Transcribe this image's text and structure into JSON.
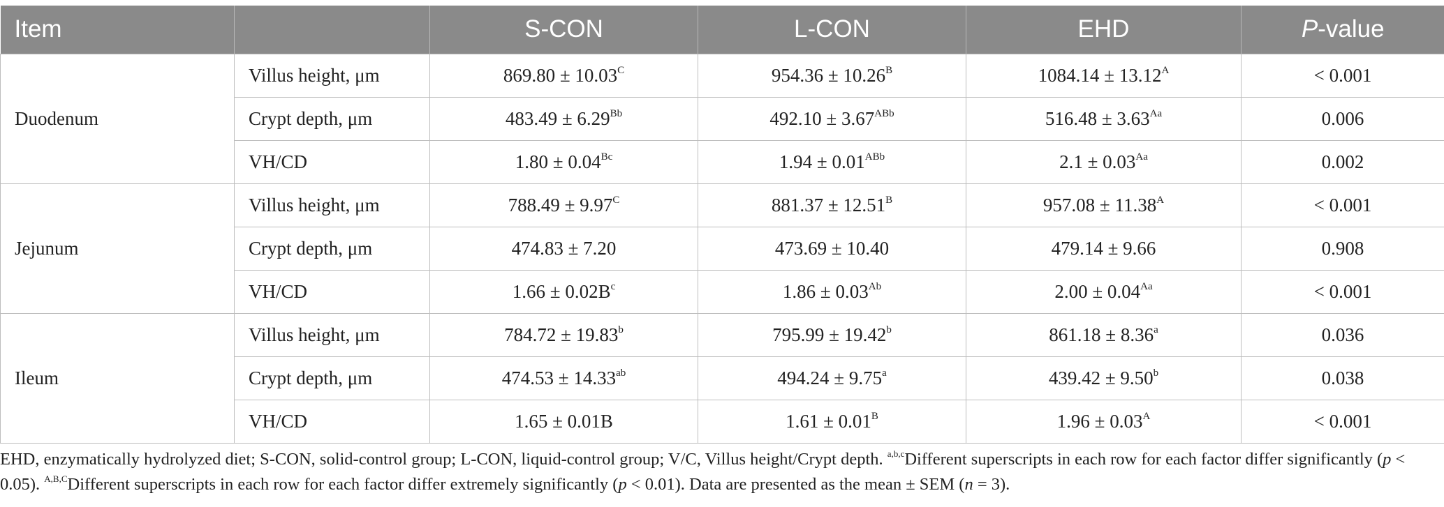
{
  "table": {
    "headers": {
      "item": "Item",
      "param": "",
      "s_con": "S-CON",
      "l_con": "L-CON",
      "ehd": "EHD",
      "p_value_italic": "P",
      "p_value_rest": "-value"
    },
    "groups": [
      {
        "name": "Duodenum",
        "rows": [
          {
            "param": "Villus height, μm",
            "s_con": {
              "value": "869.80 ± 10.03",
              "sup": "C"
            },
            "l_con": {
              "value": "954.36 ± 10.26",
              "sup": "B"
            },
            "ehd": {
              "value": "1084.14 ± 13.12",
              "sup": "A"
            },
            "p": "< 0.001"
          },
          {
            "param": "Crypt depth, μm",
            "s_con": {
              "value": "483.49 ± 6.29",
              "sup": "Bb"
            },
            "l_con": {
              "value": "492.10 ± 3.67",
              "sup": "ABb"
            },
            "ehd": {
              "value": "516.48 ± 3.63",
              "sup": "Aa"
            },
            "p": "0.006"
          },
          {
            "param": "VH/CD",
            "s_con": {
              "value": "1.80 ± 0.04",
              "sup": "Bc"
            },
            "l_con": {
              "value": "1.94 ± 0.01",
              "sup": "ABb"
            },
            "ehd": {
              "value": "2.1 ± 0.03",
              "sup": "Aa"
            },
            "p": "0.002"
          }
        ]
      },
      {
        "name": "Jejunum",
        "rows": [
          {
            "param": "Villus height, μm",
            "s_con": {
              "value": "788.49 ± 9.97",
              "sup": "C"
            },
            "l_con": {
              "value": "881.37 ± 12.51",
              "sup": "B"
            },
            "ehd": {
              "value": "957.08 ± 11.38",
              "sup": "A"
            },
            "p": "< 0.001"
          },
          {
            "param": "Crypt depth, μm",
            "s_con": {
              "value": "474.83 ± 7.20",
              "sup": ""
            },
            "l_con": {
              "value": "473.69 ± 10.40",
              "sup": ""
            },
            "ehd": {
              "value": "479.14 ± 9.66",
              "sup": ""
            },
            "p": "0.908"
          },
          {
            "param": "VH/CD",
            "s_con": {
              "value": "1.66 ± 0.02B",
              "sup": "c"
            },
            "l_con": {
              "value": "1.86 ± 0.03",
              "sup": "Ab"
            },
            "ehd": {
              "value": "2.00 ± 0.04",
              "sup": "Aa"
            },
            "p": "< 0.001"
          }
        ]
      },
      {
        "name": "Ileum",
        "rows": [
          {
            "param": "Villus height, μm",
            "s_con": {
              "value": "784.72 ± 19.83",
              "sup": "b"
            },
            "l_con": {
              "value": "795.99 ± 19.42",
              "sup": "b"
            },
            "ehd": {
              "value": "861.18 ± 8.36",
              "sup": "a"
            },
            "p": "0.036"
          },
          {
            "param": "Crypt depth, μm",
            "s_con": {
              "value": "474.53 ± 14.33",
              "sup": "ab"
            },
            "l_con": {
              "value": "494.24 ± 9.75",
              "sup": "a"
            },
            "ehd": {
              "value": "439.42 ± 9.50",
              "sup": "b"
            },
            "p": "0.038"
          },
          {
            "param": "VH/CD",
            "s_con": {
              "value": "1.65 ± 0.01B",
              "sup": ""
            },
            "l_con": {
              "value": "1.61 ± 0.01",
              "sup": "B"
            },
            "ehd": {
              "value": "1.96 ± 0.03",
              "sup": "A"
            },
            "p": "< 0.001"
          }
        ]
      }
    ]
  },
  "footnote": {
    "abbreviations": "EHD, enzymatically hydrolyzed diet; S-CON, solid-control group; L-CON, liquid-control group; V/C, Villus height/Crypt depth. ",
    "sup_lower": "a,b,c",
    "lower_text_1": "Different superscripts in each row for each factor differ significantly (",
    "p_symbol": "p",
    "lower_text_2": " < 0.05). ",
    "sup_upper": "A,B,C",
    "upper_text_1": "Different superscripts in each row for each factor differ extremely significantly (",
    "upper_text_2": " < 0.01). Data are presented as the mean ± SEM (",
    "n_symbol": "n",
    "n_text": " = 3)."
  }
}
